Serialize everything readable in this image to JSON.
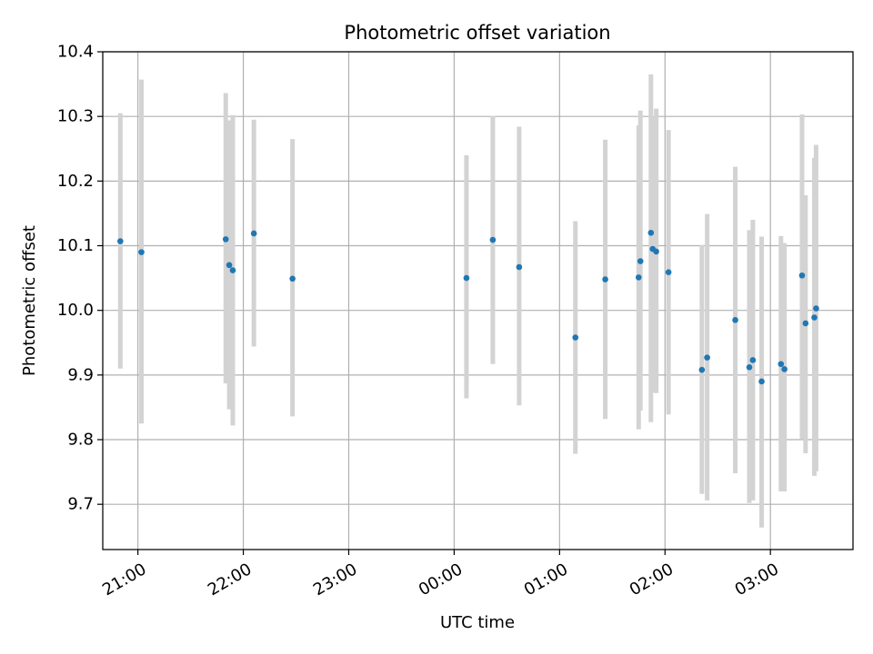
{
  "chart_data": {
    "type": "scatter",
    "title": "Photometric offset variation",
    "xlabel": "UTC time",
    "ylabel": "Photometric offset",
    "x_axis_kind": "time",
    "x_tick_labels": [
      "21:00",
      "22:00",
      "23:00",
      "00:00",
      "01:00",
      "02:00",
      "03:00"
    ],
    "x_tick_times": [
      "20:00",
      "21:00",
      "22:00",
      "23:00",
      "00:00",
      "01:00",
      "02:00",
      "03:00"
    ],
    "y_ticks": [
      9.7,
      9.8,
      9.9,
      10.0,
      10.1,
      10.2,
      10.3,
      10.4
    ],
    "y_tick_labels": [
      "9.7",
      "9.8",
      "9.9",
      "10.0",
      "10.1",
      "10.2",
      "10.3",
      "10.4"
    ],
    "ylim": [
      9.63,
      10.4
    ],
    "xlim": [
      "20:40",
      "03:47"
    ],
    "grid": true,
    "marker_color": "#1f77b4",
    "errorbar_color": "#d3d3d3",
    "series": [
      {
        "x": [
          "20:50",
          "21:02",
          "21:50",
          "21:52",
          "21:54",
          "22:06",
          "22:28",
          "00:07",
          "00:22",
          "00:37",
          "01:09",
          "01:26",
          "01:45",
          "01:46",
          "01:52",
          "01:53",
          "01:55",
          "02:02",
          "02:21",
          "02:24",
          "02:40",
          "02:48",
          "02:50",
          "02:55",
          "03:06",
          "03:08",
          "03:18",
          "03:20",
          "03:25",
          "03:26"
        ],
        "y": [
          10.107,
          10.09,
          10.11,
          10.07,
          10.062,
          10.119,
          10.049,
          10.05,
          10.109,
          10.067,
          9.958,
          10.048,
          10.051,
          10.076,
          10.12,
          10.095,
          10.091,
          10.059,
          9.908,
          9.927,
          9.985,
          9.912,
          9.923,
          9.89,
          9.917,
          9.909,
          10.054,
          9.98,
          9.989,
          10.003
        ],
        "err_low": [
          9.91,
          9.825,
          9.887,
          9.847,
          9.822,
          9.944,
          9.836,
          9.864,
          9.917,
          9.853,
          9.778,
          9.832,
          9.816,
          9.845,
          9.827,
          9.873,
          9.872,
          9.839,
          9.716,
          9.706,
          9.748,
          9.702,
          9.706,
          9.664,
          9.72,
          9.72,
          9.801,
          9.779,
          9.744,
          9.751
        ],
        "err_high": [
          10.305,
          10.357,
          10.336,
          10.294,
          10.302,
          10.295,
          10.265,
          10.24,
          10.301,
          10.284,
          10.138,
          10.264,
          10.286,
          10.309,
          10.365,
          10.3,
          10.312,
          10.279,
          10.101,
          10.149,
          10.222,
          10.124,
          10.14,
          10.114,
          10.115,
          10.104,
          10.303,
          10.178,
          10.236,
          10.256
        ]
      }
    ]
  }
}
